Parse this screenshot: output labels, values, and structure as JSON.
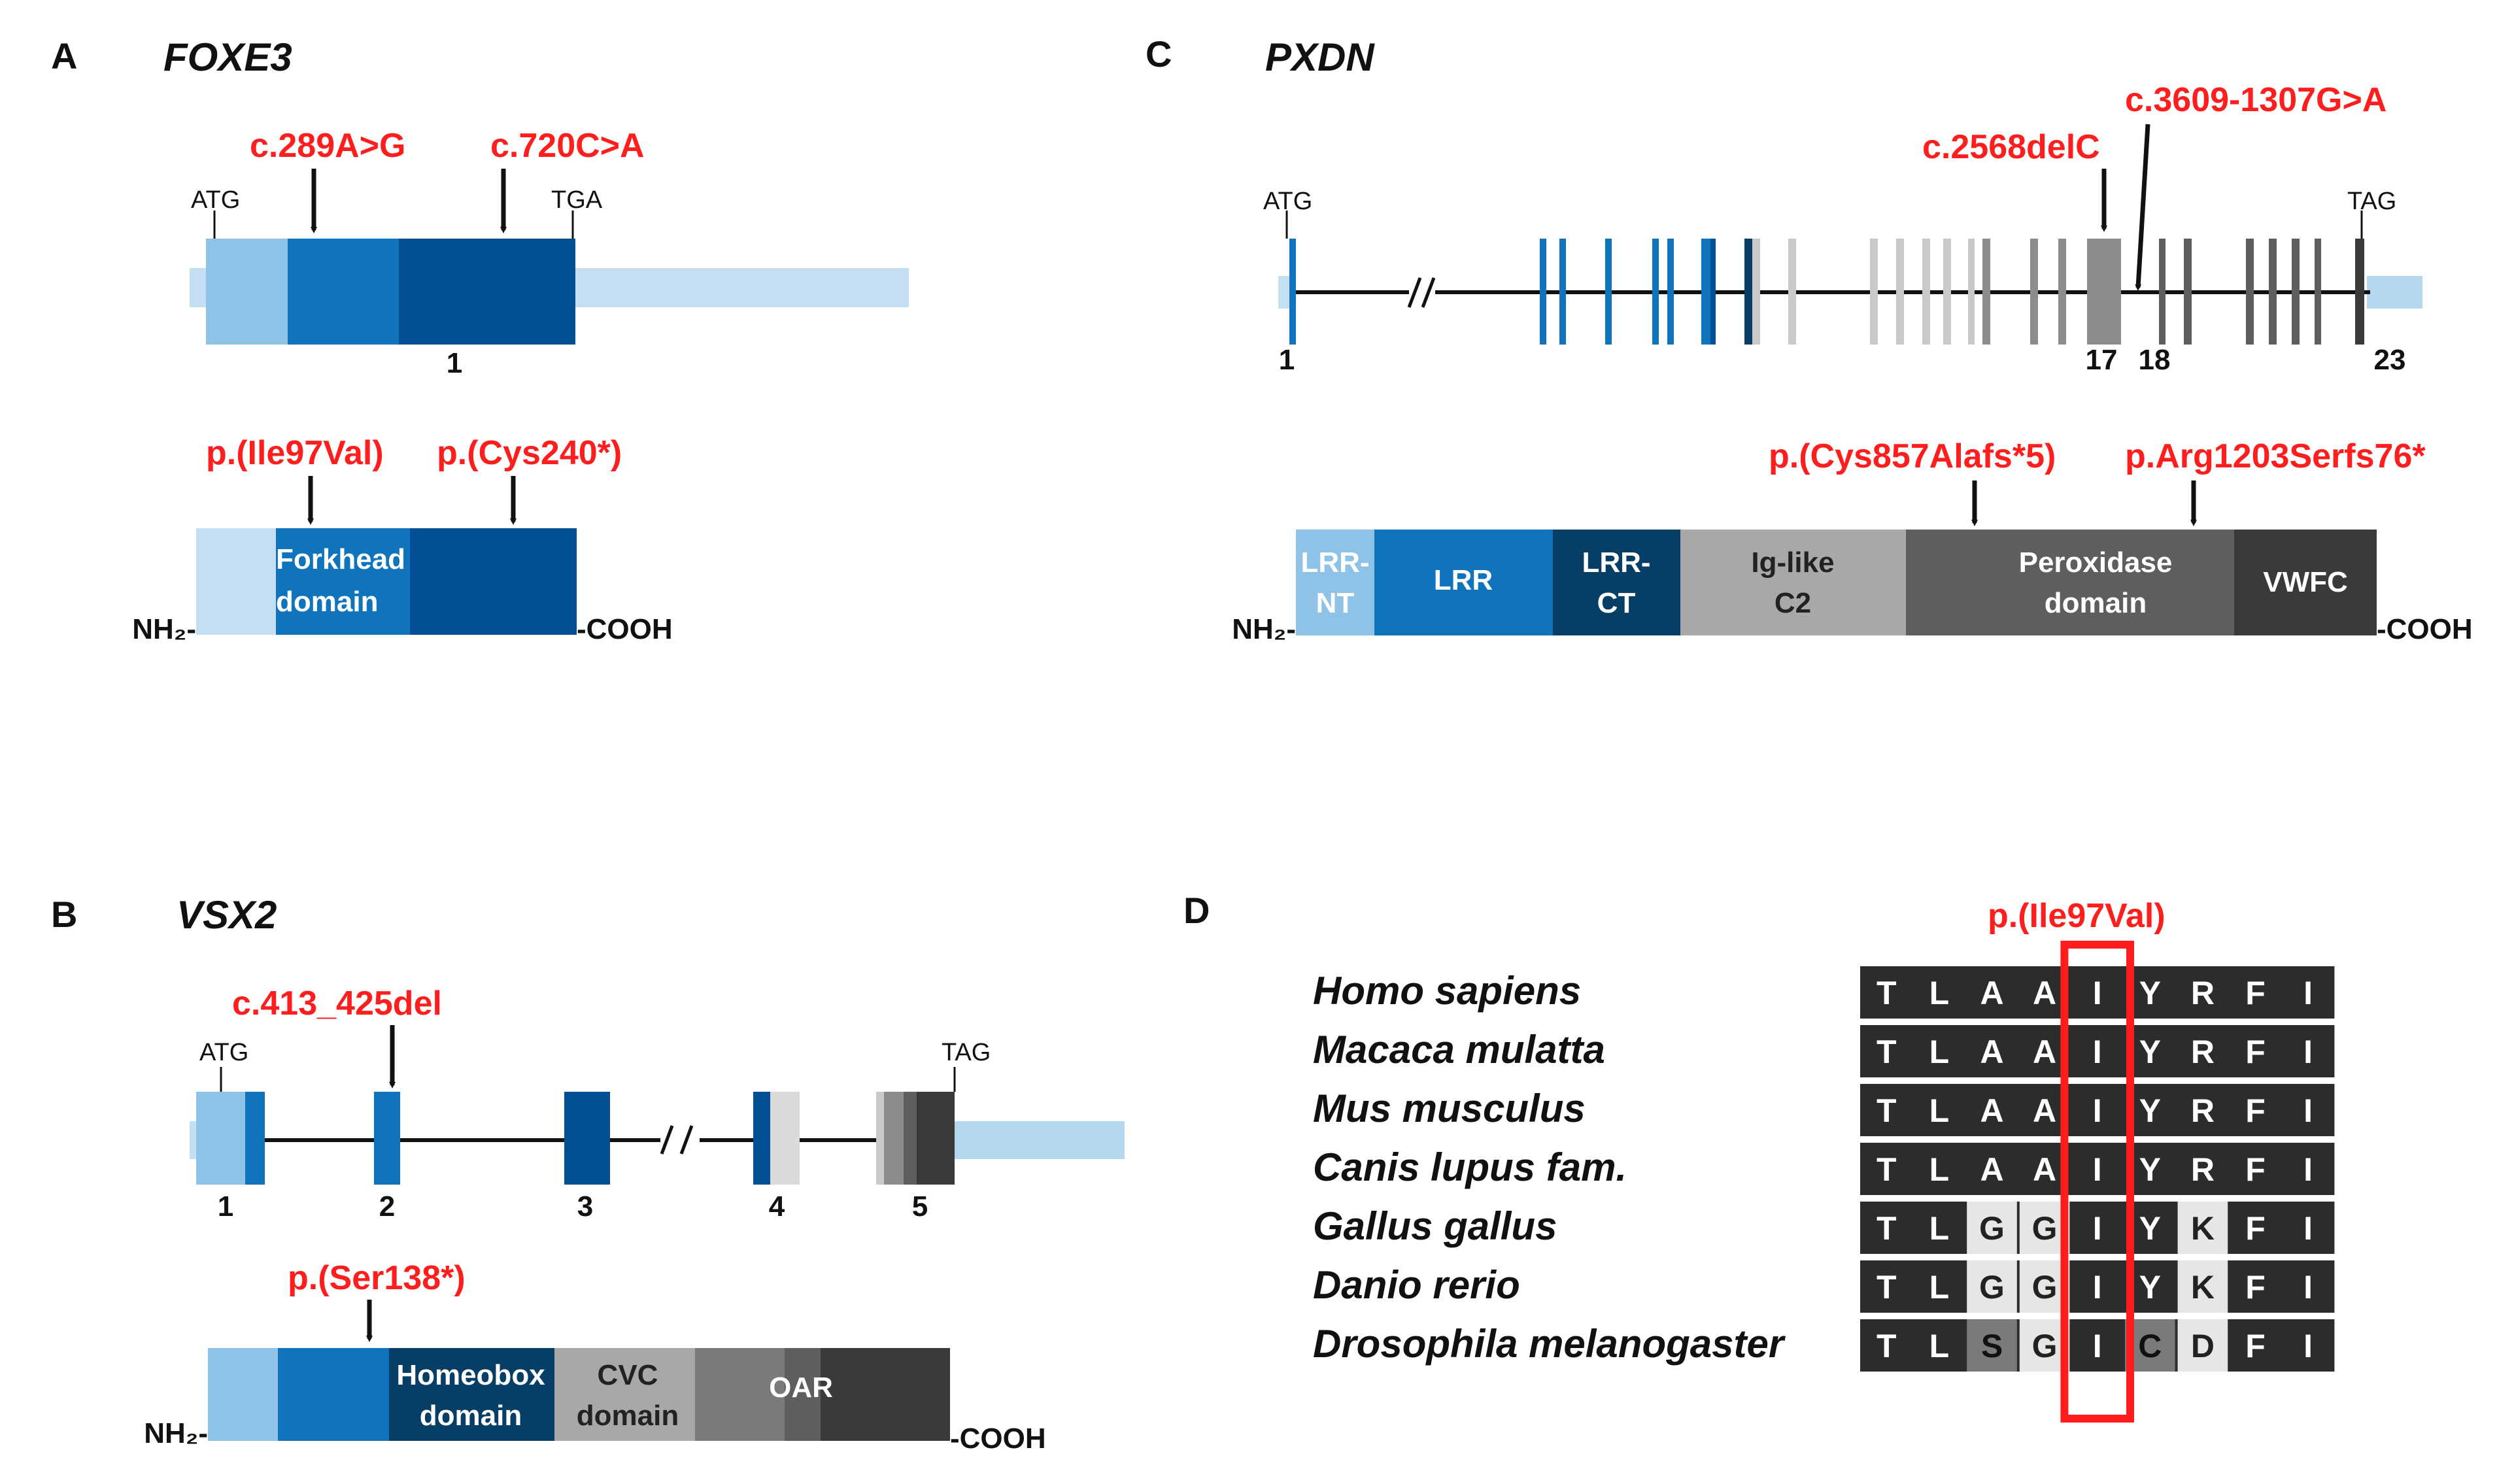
{
  "colors": {
    "blue_light": "#8ec2e6",
    "blue_pale": "#c4dff2",
    "blue_mid": "#0f74bc",
    "blue_dark": "#034f93",
    "blue_navy": "#063e66",
    "gray_light": "#c9c9c9",
    "gray_mid": "#8c8c8c",
    "gray_dark": "#5e5e5e",
    "charcoal": "#3a3a3a",
    "red": "#ff1e1e"
  },
  "panelA": {
    "letter": "A",
    "gene": "FOXE3",
    "mutations": [
      "c.289A>G",
      "c.720C>A"
    ],
    "start_codon": "ATG",
    "stop_codon": "TGA",
    "exon_label": "1",
    "protein_mutations": [
      "p.(Ile97Val)",
      "p.(Cys240*)"
    ],
    "domain_line1": "Forkhead",
    "domain_line2": "domain",
    "nh2": "NH₂-",
    "cooh": "-COOH"
  },
  "panelB": {
    "letter": "B",
    "gene": "VSX2",
    "mutation": "c.413_425del",
    "start_codon": "ATG",
    "stop_codon": "TAG",
    "exon_labels": [
      "1",
      "2",
      "3",
      "4",
      "5"
    ],
    "protein_mutation": "p.(Ser138*)",
    "domain_homeobox_1": "Homeobox",
    "domain_homeobox_2": "domain",
    "domain_cvc_1": "CVC",
    "domain_cvc_2": "domain",
    "domain_oar": "OAR",
    "nh2": "NH₂-",
    "cooh": "-COOH"
  },
  "panelC": {
    "letter": "C",
    "gene": "PXDN",
    "mutations": [
      "c.2568delC",
      "c.3609-1307G>A"
    ],
    "start_codon": "ATG",
    "stop_codon": "TAG",
    "exon_labels": [
      "1",
      "17",
      "18",
      "23"
    ],
    "protein_mutations": [
      "p.(Cys857Alafs*5)",
      "p.Arg1203Serfs76*"
    ],
    "domain_lrrnt_1": "LRR-",
    "domain_lrrnt_2": "NT",
    "domain_lrr": "LRR",
    "domain_lrrct_1": "LRR-",
    "domain_lrrct_2": "CT",
    "domain_ig_1": "Ig-like",
    "domain_ig_2": "C2",
    "domain_perox_1": "Peroxidase",
    "domain_perox_2": "domain",
    "domain_vwfc": "VWFC",
    "nh2": "NH₂-",
    "cooh": "-COOH"
  },
  "panelD": {
    "letter": "D",
    "variant": "p.(Ile97Val)",
    "alignment": [
      {
        "species": "Homo sapiens",
        "residues": [
          "T",
          "L",
          "A",
          "A",
          "I",
          "Y",
          "R",
          "F",
          "I"
        ]
      },
      {
        "species": "Macaca mulatta",
        "residues": [
          "T",
          "L",
          "A",
          "A",
          "I",
          "Y",
          "R",
          "F",
          "I"
        ]
      },
      {
        "species": "Mus musculus",
        "residues": [
          "T",
          "L",
          "A",
          "A",
          "I",
          "Y",
          "R",
          "F",
          "I"
        ]
      },
      {
        "species": "Canis lupus fam.",
        "residues": [
          "T",
          "L",
          "A",
          "A",
          "I",
          "Y",
          "R",
          "F",
          "I"
        ]
      },
      {
        "species": "Gallus gallus",
        "residues": [
          "T",
          "L",
          "G",
          "G",
          "I",
          "Y",
          "K",
          "F",
          "I"
        ]
      },
      {
        "species": "Danio rerio",
        "residues": [
          "T",
          "L",
          "G",
          "G",
          "I",
          "Y",
          "K",
          "F",
          "I"
        ]
      },
      {
        "species": "Drosophila melanogaster",
        "residues": [
          "T",
          "L",
          "S",
          "G",
          "I",
          "C",
          "D",
          "F",
          "I"
        ]
      }
    ]
  }
}
